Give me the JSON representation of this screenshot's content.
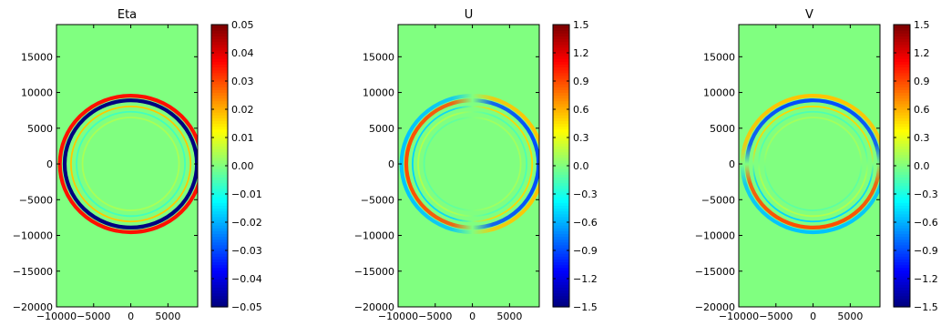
{
  "chart_data": [
    {
      "type": "heatmap",
      "title": "Eta",
      "field": "eta",
      "xlim": [
        -10000,
        9000
      ],
      "ylim": [
        -20000,
        19500
      ],
      "xticks": [
        {
          "value": -10000,
          "label": "−10000"
        },
        {
          "value": -5000,
          "label": "−5000"
        },
        {
          "value": 0,
          "label": "0"
        },
        {
          "value": 5000,
          "label": "5000"
        }
      ],
      "yticks": [
        {
          "value": -20000,
          "label": "−20000"
        },
        {
          "value": -15000,
          "label": "−15000"
        },
        {
          "value": -10000,
          "label": "−10000"
        },
        {
          "value": -5000,
          "label": "−5000"
        },
        {
          "value": 0,
          "label": "0"
        },
        {
          "value": 5000,
          "label": "5000"
        },
        {
          "value": 10000,
          "label": "10000"
        },
        {
          "value": 15000,
          "label": "15000"
        }
      ],
      "colorbar": {
        "colormap": "jet",
        "vmin": -0.05,
        "vmax": 0.05,
        "ticks": [
          {
            "value": 0.05,
            "label": "0.05"
          },
          {
            "value": 0.04,
            "label": "0.04"
          },
          {
            "value": 0.03,
            "label": "0.03"
          },
          {
            "value": 0.02,
            "label": "0.02"
          },
          {
            "value": 0.01,
            "label": "0.01"
          },
          {
            "value": 0.0,
            "label": "0.00"
          },
          {
            "value": -0.01,
            "label": "−0.01"
          },
          {
            "value": -0.02,
            "label": "−0.02"
          },
          {
            "value": -0.03,
            "label": "−0.03"
          },
          {
            "value": -0.04,
            "label": "−0.04"
          },
          {
            "value": -0.05,
            "label": "−0.05"
          }
        ]
      },
      "rings": [
        {
          "radius": 9550,
          "value": 0.036
        },
        {
          "radius": 8900,
          "value": -0.05
        },
        {
          "radius": 8050,
          "value": 0.018
        },
        {
          "radius": 7300,
          "value": -0.006
        },
        {
          "radius": 6500,
          "value": 0.004
        }
      ]
    },
    {
      "type": "heatmap",
      "title": "U",
      "field": "u",
      "xlim": [
        -10000,
        9000
      ],
      "ylim": [
        -20000,
        19500
      ],
      "xticks": [
        {
          "value": -10000,
          "label": "−10000"
        },
        {
          "value": -5000,
          "label": "−5000"
        },
        {
          "value": 0,
          "label": "0"
        },
        {
          "value": 5000,
          "label": "5000"
        }
      ],
      "yticks": [
        {
          "value": -20000,
          "label": "−20000"
        },
        {
          "value": -15000,
          "label": "−15000"
        },
        {
          "value": -10000,
          "label": "−10000"
        },
        {
          "value": -5000,
          "label": "−5000"
        },
        {
          "value": 0,
          "label": "0"
        },
        {
          "value": 5000,
          "label": "5000"
        },
        {
          "value": 10000,
          "label": "10000"
        },
        {
          "value": 15000,
          "label": "15000"
        }
      ],
      "colorbar": {
        "colormap": "jet",
        "vmin": -1.5,
        "vmax": 1.5,
        "ticks": [
          {
            "value": 1.5,
            "label": "1.5"
          },
          {
            "value": 1.2,
            "label": "1.2"
          },
          {
            "value": 0.9,
            "label": "0.9"
          },
          {
            "value": 0.6,
            "label": "0.6"
          },
          {
            "value": 0.3,
            "label": "0.3"
          },
          {
            "value": 0.0,
            "label": "0.0"
          },
          {
            "value": -0.3,
            "label": "−0.3"
          },
          {
            "value": -0.6,
            "label": "−0.6"
          },
          {
            "value": -0.9,
            "label": "−0.9"
          },
          {
            "value": -1.2,
            "label": "−1.2"
          },
          {
            "value": -1.5,
            "label": "−1.5"
          }
        ]
      },
      "rings": [
        {
          "radius": 9550,
          "value": 0.55
        },
        {
          "radius": 8900,
          "value": -0.9
        },
        {
          "radius": 8050,
          "value": 0.5
        },
        {
          "radius": 7300,
          "value": -0.15
        },
        {
          "radius": 6500,
          "value": 0.1
        }
      ]
    },
    {
      "type": "heatmap",
      "title": "V",
      "field": "v",
      "xlim": [
        -10000,
        9000
      ],
      "ylim": [
        -20000,
        19500
      ],
      "xticks": [
        {
          "value": -10000,
          "label": "−10000"
        },
        {
          "value": -5000,
          "label": "−5000"
        },
        {
          "value": 0,
          "label": "0"
        },
        {
          "value": 5000,
          "label": "5000"
        }
      ],
      "yticks": [
        {
          "value": -20000,
          "label": "−20000"
        },
        {
          "value": -15000,
          "label": "−15000"
        },
        {
          "value": -10000,
          "label": "−10000"
        },
        {
          "value": -5000,
          "label": "−5000"
        },
        {
          "value": 0,
          "label": "0"
        },
        {
          "value": 5000,
          "label": "5000"
        },
        {
          "value": 10000,
          "label": "10000"
        },
        {
          "value": 15000,
          "label": "15000"
        }
      ],
      "colorbar": {
        "colormap": "jet",
        "vmin": -1.5,
        "vmax": 1.5,
        "ticks": [
          {
            "value": 1.5,
            "label": "1.5"
          },
          {
            "value": 1.2,
            "label": "1.2"
          },
          {
            "value": 0.9,
            "label": "0.9"
          },
          {
            "value": 0.6,
            "label": "0.6"
          },
          {
            "value": 0.3,
            "label": "0.3"
          },
          {
            "value": 0.0,
            "label": "0.0"
          },
          {
            "value": -0.3,
            "label": "−0.3"
          },
          {
            "value": -0.6,
            "label": "−0.6"
          },
          {
            "value": -0.9,
            "label": "−0.9"
          },
          {
            "value": -1.2,
            "label": "−1.2"
          },
          {
            "value": -1.5,
            "label": "−1.5"
          }
        ]
      },
      "rings": [
        {
          "radius": 9550,
          "value": 0.55
        },
        {
          "radius": 8900,
          "value": -0.9
        },
        {
          "radius": 8050,
          "value": 0.5
        },
        {
          "radius": 7300,
          "value": -0.15
        },
        {
          "radius": 6500,
          "value": 0.1
        }
      ]
    }
  ]
}
